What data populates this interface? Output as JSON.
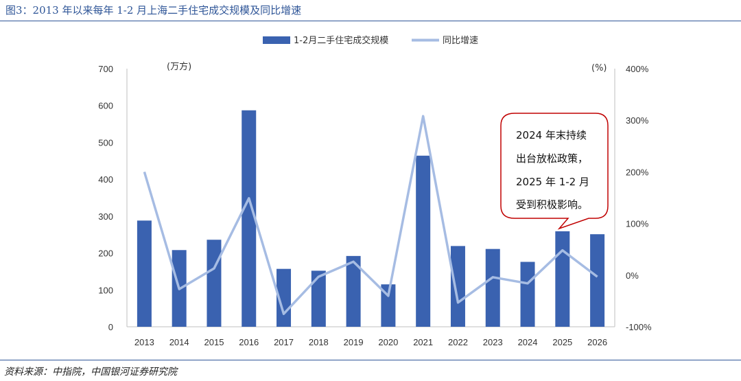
{
  "figure": {
    "title": "图3：2013 年以来每年 1-2 月上海二手住宅成交规模及同比增速",
    "source": "资料来源：中指院，中国银河证券研究院"
  },
  "chart_data": {
    "type": "bar+line",
    "categories": [
      "2013",
      "2014",
      "2015",
      "2016",
      "2017",
      "2018",
      "2019",
      "2020",
      "2021",
      "2022",
      "2023",
      "2024",
      "2025",
      "2026"
    ],
    "series": [
      {
        "name": "1-2月二手住宅成交规模",
        "type": "bar",
        "axis": "left",
        "values": [
          288,
          208,
          236,
          587,
          157,
          152,
          192,
          115,
          464,
          219,
          211,
          176,
          259,
          251
        ]
      },
      {
        "name": "同比增速",
        "type": "line",
        "axis": "right",
        "values": [
          200,
          -27,
          13,
          149,
          -75,
          -3,
          26,
          -40,
          308,
          -53,
          -4,
          -16,
          48,
          -3
        ]
      }
    ],
    "y_left": {
      "label": "(万方)",
      "ylim": [
        0,
        700
      ],
      "ticks": [
        0,
        100,
        200,
        300,
        400,
        500,
        600,
        700
      ]
    },
    "y_right": {
      "label": "(%)",
      "ylim": [
        -100,
        400
      ],
      "ticks": [
        "-100%",
        "0%",
        "100%",
        "200%",
        "300%",
        "400%"
      ]
    },
    "colors": {
      "bar": "#3a62b0",
      "line": "#a6bce3"
    },
    "legend_position": "top-center",
    "annotation": {
      "lines": [
        "2024 年末持续",
        "出台放松政策，",
        "2025 年 1-2 月",
        "受到积极影响。"
      ],
      "border_color": "#c00000",
      "target": "2025"
    }
  }
}
